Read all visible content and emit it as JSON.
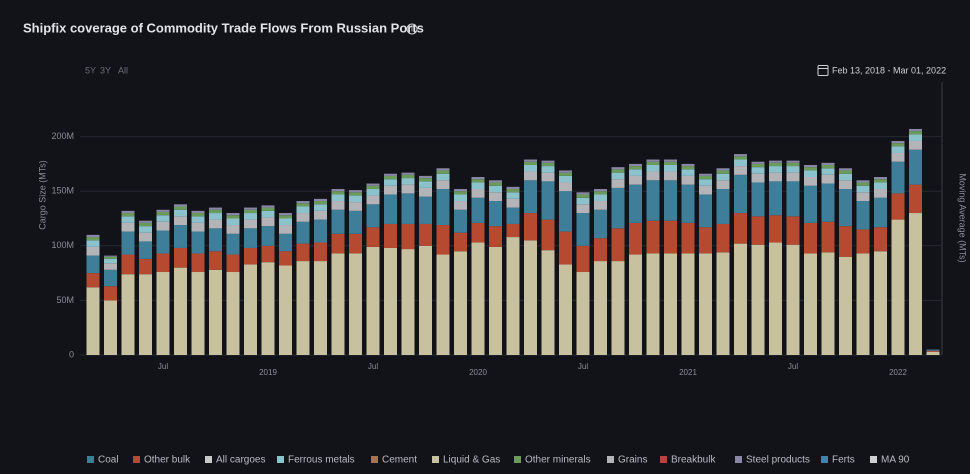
{
  "chart_data": {
    "type": "bar",
    "stacked": true,
    "title": "Shipfix coverage of Commodity Trade Flows From Russian Ports",
    "range_buttons": [
      "5Y",
      "3Y",
      "All"
    ],
    "date_range": "Feb 13, 2018 - Mar 01, 2022",
    "y_label": "Cargo Size (MTs)",
    "y2_label": "Moving Average (MTs)",
    "ylim": [
      0,
      250000000
    ],
    "yticks": [
      0,
      {
        "value": 50000000,
        "label": "50M"
      },
      {
        "value": 100000000,
        "label": "100M"
      },
      {
        "value": 150000000,
        "label": "150M"
      },
      {
        "value": 200000000,
        "label": "200M"
      }
    ],
    "grid": true,
    "categories": [
      null,
      null,
      null,
      null,
      "Jul",
      null,
      null,
      null,
      null,
      null,
      "2019",
      null,
      null,
      null,
      null,
      null,
      "Jul",
      null,
      null,
      null,
      null,
      null,
      "2020",
      null,
      null,
      null,
      null,
      null,
      "Jul",
      null,
      null,
      null,
      null,
      null,
      "2021",
      null,
      null,
      null,
      null,
      null,
      "Jul",
      null,
      null,
      null,
      null,
      null,
      "2022",
      null,
      null
    ],
    "series": [
      {
        "name": "Coal",
        "color": "#3e7e99",
        "values": [
          16000000.0,
          15000000.0,
          21000000.0,
          16000000.0,
          21000000.0,
          21000000.0,
          20000000.0,
          21000000.0,
          19000000.0,
          18000000.0,
          18000000.0,
          16000000.0,
          20000000.0,
          21000000.0,
          22000000.0,
          21000000.0,
          21000000.0,
          27000000.0,
          28000000.0,
          25000000.0,
          33000000.0,
          21000000.0,
          23000000.0,
          23000000.0,
          15000000.0,
          30000000.0,
          35000000.0,
          37000000.0,
          30000000.0,
          26000000.0,
          37000000.0,
          35000000.0,
          37000000.0,
          37000000.0,
          35000000.0,
          30000000.0,
          32000000.0,
          35000000.0,
          31000000.0,
          31000000.0,
          32000000.0,
          34000000.0,
          35000000.0,
          34000000.0,
          26000000.0,
          27000000.0,
          29000000.0,
          32000000.0,
          1000000.0
        ]
      },
      {
        "name": "Other bulk",
        "color": "#b54a30",
        "values": [
          13000000.0,
          13000000.0,
          18000000.0,
          14000000.0,
          17000000.0,
          18000000.0,
          17000000.0,
          17000000.0,
          16000000.0,
          15000000.0,
          15000000.0,
          13000000.0,
          16000000.0,
          17000000.0,
          18000000.0,
          18000000.0,
          18000000.0,
          22000000.0,
          23000000.0,
          20000000.0,
          27000000.0,
          17000000.0,
          18000000.0,
          19000000.0,
          12000000.0,
          25000000.0,
          28000000.0,
          30000000.0,
          24000000.0,
          21000000.0,
          30000000.0,
          29000000.0,
          30000000.0,
          30000000.0,
          28000000.0,
          24000000.0,
          26000000.0,
          28000000.0,
          26000000.0,
          25000000.0,
          26000000.0,
          28000000.0,
          28000000.0,
          28000000.0,
          22000000.0,
          22000000.0,
          24000000.0,
          26000000.0,
          1000000.0
        ]
      },
      {
        "name": "All cargoes",
        "color": "#c9c9c9"
      },
      {
        "name": "Ferrous metals",
        "color": "#8cc2cc",
        "values": [
          6000000.0,
          4000000.0,
          6000000.0,
          6000000.0,
          6000000.0,
          6000000.0,
          6000000.0,
          6000000.0,
          6000000.0,
          6000000.0,
          6000000.0,
          6000000.0,
          6000000.0,
          6000000.0,
          6000000.0,
          6000000.0,
          6000000.0,
          6000000.0,
          6000000.0,
          6000000.0,
          6000000.0,
          6000000.0,
          6000000.0,
          6000000.0,
          6000000.0,
          6000000.0,
          6000000.0,
          6000000.0,
          6000000.0,
          6000000.0,
          6000000.0,
          6000000.0,
          6000000.0,
          6000000.0,
          6000000.0,
          6000000.0,
          6000000.0,
          6000000.0,
          6000000.0,
          6000000.0,
          6000000.0,
          6000000.0,
          6000000.0,
          6000000.0,
          6000000.0,
          6000000.0,
          6000000.0,
          6000000.0,
          0
        ]
      },
      {
        "name": "Cement",
        "color": "#a8744a"
      },
      {
        "name": "Liquid & Gas",
        "color": "#c8c1a0",
        "values": [
          62000000.0,
          50000000.0,
          74000000.0,
          74000000.0,
          76000000.0,
          80000000.0,
          76000000.0,
          78000000.0,
          76000000.0,
          83000000.0,
          85000000.0,
          82000000.0,
          86000000.0,
          86000000.0,
          93000000.0,
          93000000.0,
          99000000.0,
          98000000.0,
          97000000.0,
          100000000.0,
          92000000.0,
          95000000.0,
          103000000.0,
          99000000.0,
          108000000.0,
          105000000.0,
          96000000.0,
          83000000.0,
          76000000.0,
          86000000.0,
          86000000.0,
          92000000.0,
          93000000.0,
          93000000.0,
          93000000.0,
          93000000.0,
          94000000.0,
          102000000.0,
          101000000.0,
          103000000.0,
          101000000.0,
          93000000.0,
          94000000.0,
          90000000.0,
          93000000.0,
          95000000.0,
          124000000.0,
          130000000.0,
          3000000.0
        ]
      },
      {
        "name": "Other minerals",
        "color": "#6a9a5c",
        "values": [
          3000000.0,
          2000000.0,
          3000000.0,
          3000000.0,
          3000000.0,
          3000000.0,
          3000000.0,
          3000000.0,
          3000000.0,
          3000000.0,
          3000000.0,
          3000000.0,
          3000000.0,
          3000000.0,
          3000000.0,
          3000000.0,
          3000000.0,
          3000000.0,
          3000000.0,
          3000000.0,
          3000000.0,
          3000000.0,
          3000000.0,
          3000000.0,
          3000000.0,
          3000000.0,
          3000000.0,
          3000000.0,
          3000000.0,
          3000000.0,
          3000000.0,
          3000000.0,
          3000000.0,
          3000000.0,
          3000000.0,
          3000000.0,
          3000000.0,
          3000000.0,
          3000000.0,
          3000000.0,
          3000000.0,
          3000000.0,
          3000000.0,
          3000000.0,
          3000000.0,
          3000000.0,
          3000000.0,
          3000000.0,
          0
        ]
      },
      {
        "name": "Grains",
        "color": "#b4b4b8",
        "values": [
          8000000.0,
          6000000.0,
          8000000.0,
          8000000.0,
          8000000.0,
          8000000.0,
          8000000.0,
          8000000.0,
          8000000.0,
          8000000.0,
          8000000.0,
          8000000.0,
          8000000.0,
          8000000.0,
          8000000.0,
          8000000.0,
          8000000.0,
          8000000.0,
          8000000.0,
          8000000.0,
          8000000.0,
          8000000.0,
          8000000.0,
          8000000.0,
          8000000.0,
          8000000.0,
          8000000.0,
          8000000.0,
          8000000.0,
          8000000.0,
          8000000.0,
          8000000.0,
          8000000.0,
          8000000.0,
          8000000.0,
          8000000.0,
          8000000.0,
          8000000.0,
          8000000.0,
          8000000.0,
          8000000.0,
          8000000.0,
          8000000.0,
          8000000.0,
          8000000.0,
          8000000.0,
          8000000.0,
          8000000.0,
          0
        ]
      },
      {
        "name": "Breakbulk",
        "color": "#b5473a"
      },
      {
        "name": "Steel products",
        "color": "#8a86a6",
        "values": [
          2000000.0,
          1000000.0,
          2000000.0,
          2000000.0,
          2000000.0,
          2000000.0,
          2000000.0,
          2000000.0,
          2000000.0,
          2000000.0,
          2000000.0,
          2000000.0,
          2000000.0,
          2000000.0,
          2000000.0,
          2000000.0,
          2000000.0,
          2000000.0,
          2000000.0,
          2000000.0,
          2000000.0,
          2000000.0,
          2000000.0,
          2000000.0,
          2000000.0,
          2000000.0,
          2000000.0,
          2000000.0,
          2000000.0,
          2000000.0,
          2000000.0,
          2000000.0,
          2000000.0,
          2000000.0,
          2000000.0,
          2000000.0,
          2000000.0,
          2000000.0,
          2000000.0,
          2000000.0,
          2000000.0,
          2000000.0,
          2000000.0,
          2000000.0,
          2000000.0,
          2000000.0,
          2000000.0,
          2000000.0,
          0
        ]
      },
      {
        "name": "Ferts",
        "color": "#3d86a8"
      },
      {
        "name": "MA 90",
        "color": "#d0d0d0"
      }
    ]
  }
}
